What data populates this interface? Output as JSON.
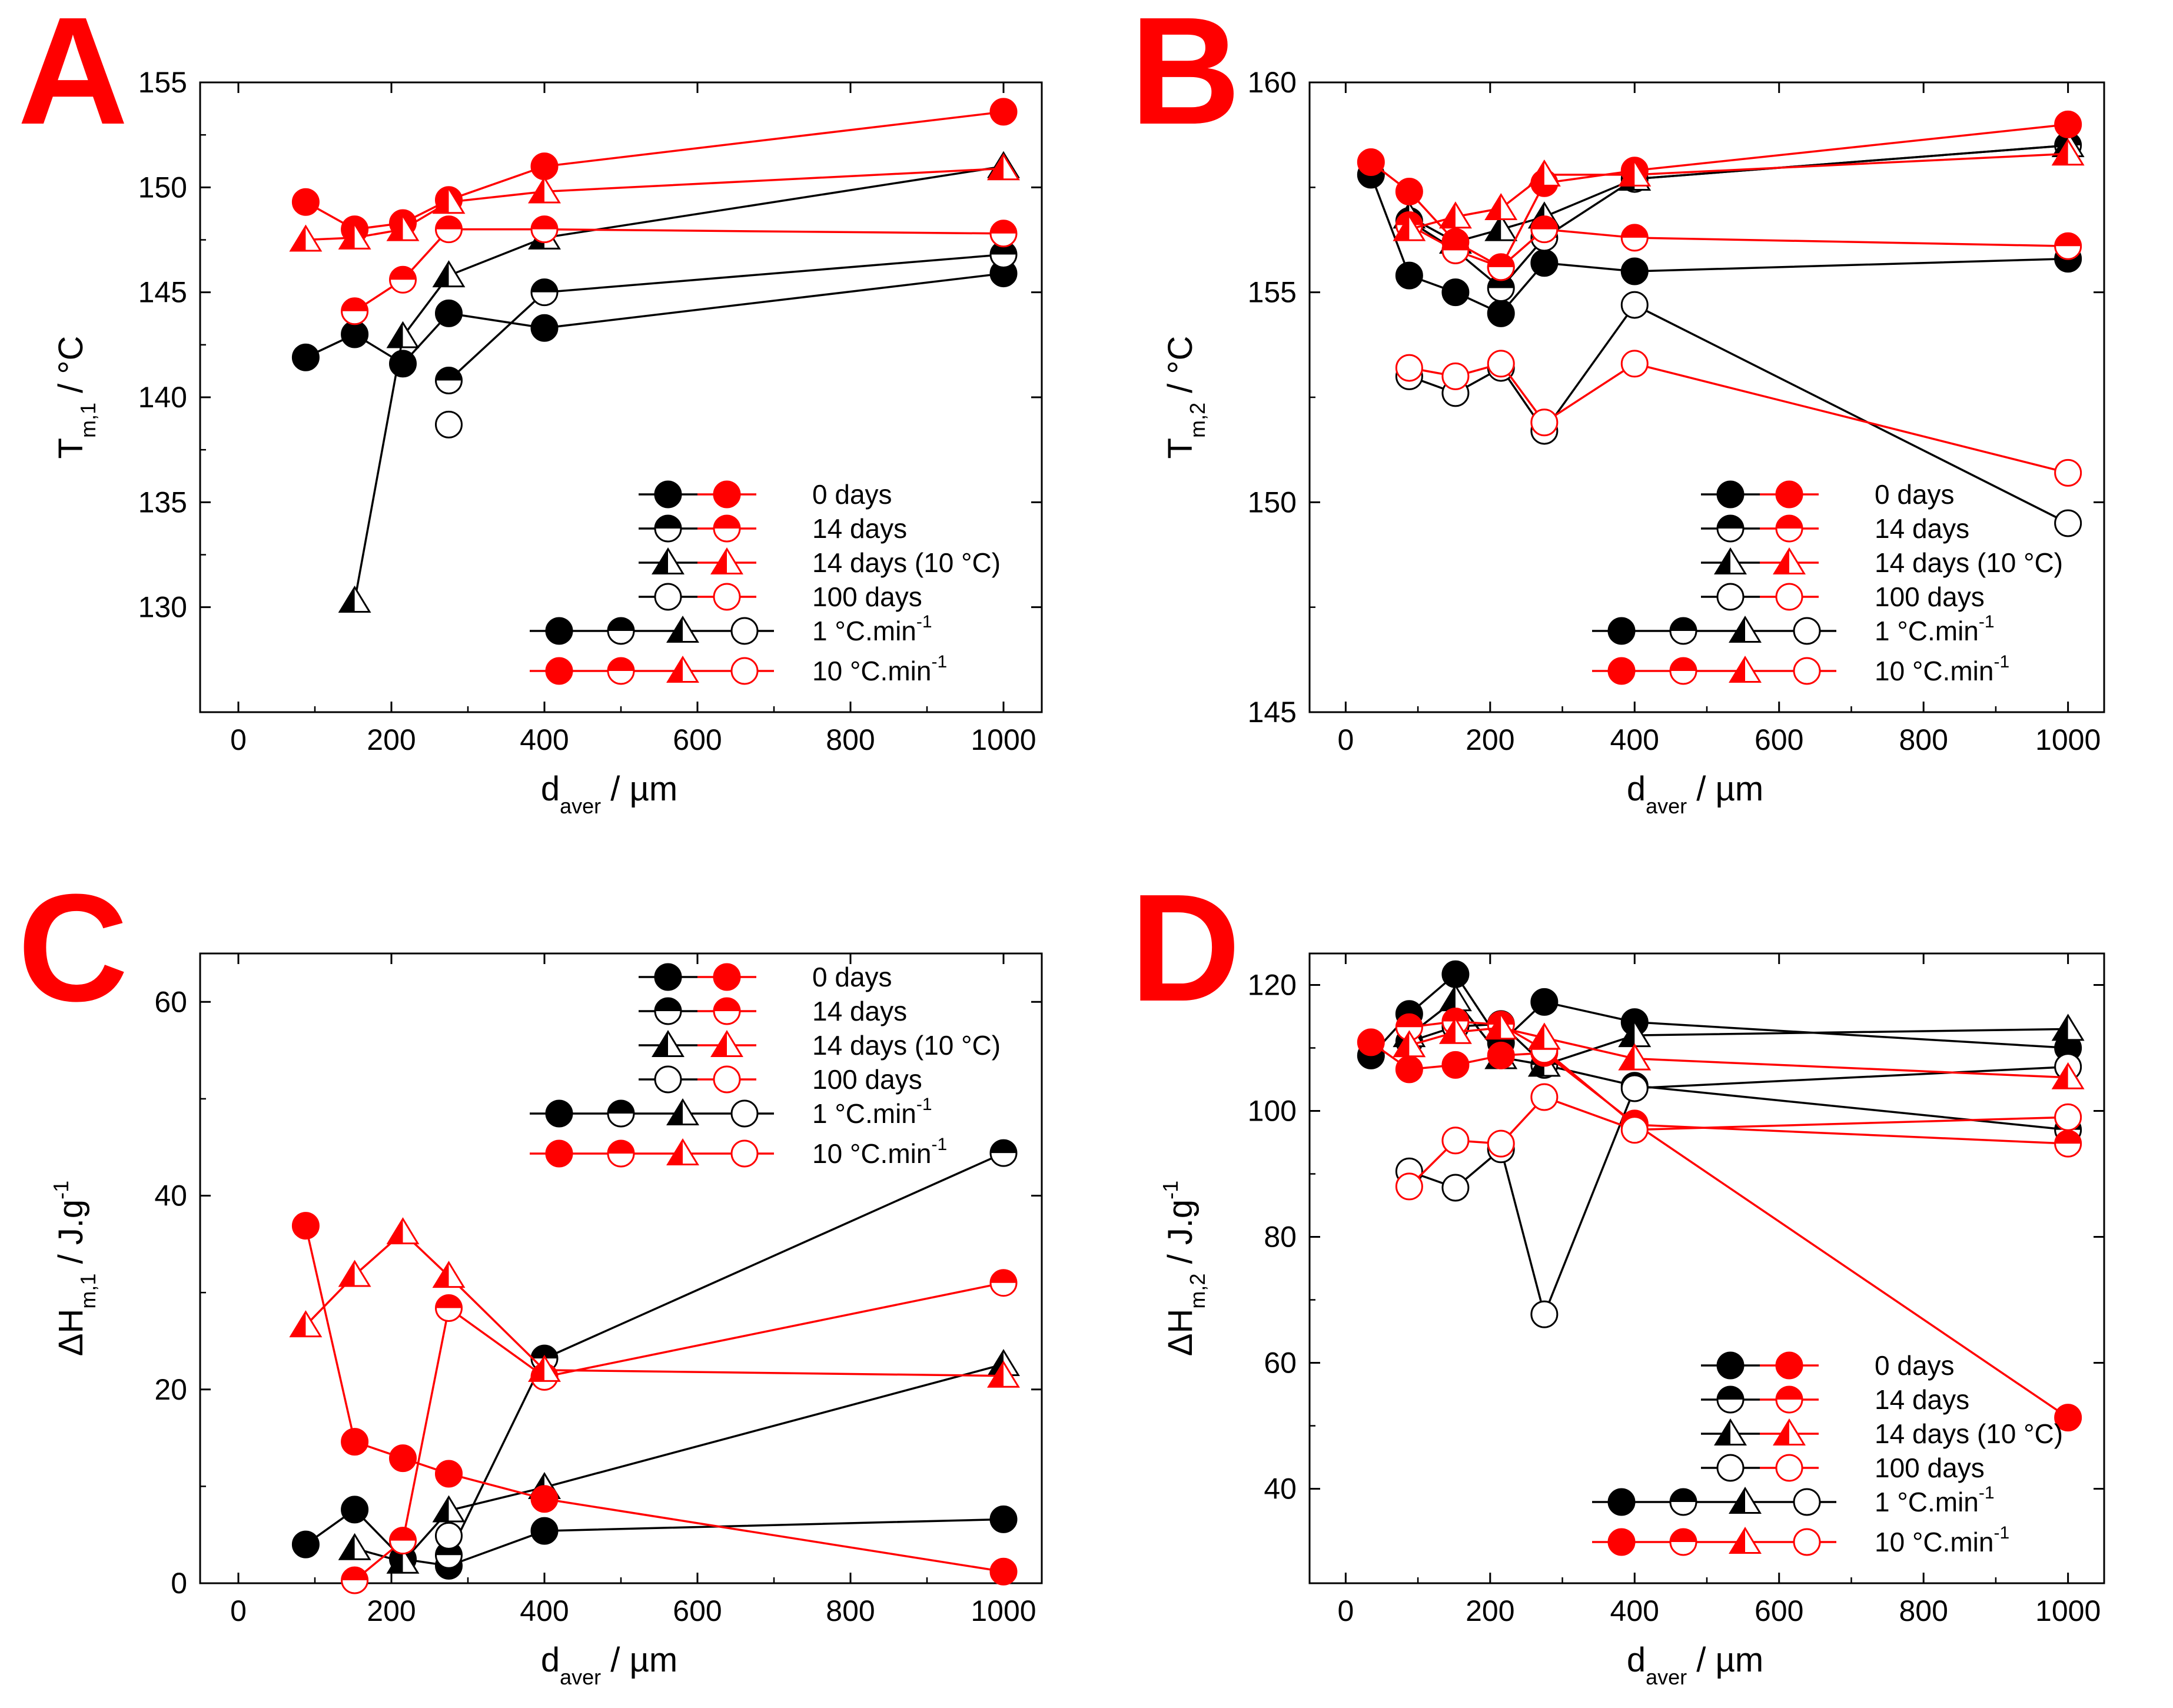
{
  "colors": {
    "black": "#000000",
    "red": "#ff0000"
  },
  "legend": {
    "series_labels": [
      "0 days",
      "14 days",
      "14 days (10 °C)",
      "100 days"
    ],
    "rate_labels": [
      {
        "base": "1 °C.min",
        "sup": "-1"
      },
      {
        "base": "10 °C.min",
        "sup": "-1"
      }
    ]
  },
  "chart_data": [
    {
      "panel": "A",
      "type": "line",
      "xlabel": "d",
      "xlabel_sub": "aver",
      "xunit": "µm",
      "ylabel": "T",
      "ylabel_sub": "m,1",
      "yunit": "°C",
      "xlim": [
        -50,
        1050
      ],
      "ylim": [
        125,
        155
      ],
      "xticks": [
        0,
        200,
        400,
        600,
        800,
        1000
      ],
      "yticks": [
        130,
        135,
        140,
        145,
        150,
        155
      ],
      "legend_position": "bottom-right",
      "series": [
        {
          "name": "0 days",
          "rate": "1 °C.min-1",
          "color": "black",
          "marker": "full",
          "points": [
            [
              88,
              141.9
            ],
            [
              152,
              143.0
            ],
            [
              215,
              141.6
            ],
            [
              275,
              144.0
            ],
            [
              400,
              143.3
            ],
            [
              1000,
              145.9
            ]
          ]
        },
        {
          "name": "14 days",
          "rate": "1 °C.min-1",
          "color": "black",
          "marker": "half",
          "points": [
            [
              275,
              140.8
            ],
            [
              400,
              145.0
            ],
            [
              1000,
              146.8
            ]
          ]
        },
        {
          "name": "14 days (10 °C)",
          "rate": "1 °C.min-1",
          "color": "black",
          "marker": "tri",
          "points": [
            [
              152,
              130.3
            ],
            [
              215,
              142.9
            ],
            [
              275,
              145.8
            ],
            [
              400,
              147.6
            ],
            [
              1000,
              151.0
            ]
          ]
        },
        {
          "name": "100 days",
          "rate": "1 °C.min-1",
          "color": "black",
          "marker": "open",
          "points": [
            [
              275,
              138.7
            ]
          ]
        },
        {
          "name": "0 days",
          "rate": "10 °C.min-1",
          "color": "red",
          "marker": "full",
          "points": [
            [
              88,
              149.3
            ],
            [
              152,
              148.0
            ],
            [
              215,
              148.3
            ],
            [
              275,
              149.4
            ],
            [
              400,
              151.0
            ],
            [
              1000,
              153.6
            ]
          ]
        },
        {
          "name": "14 days",
          "rate": "10 °C.min-1",
          "color": "red",
          "marker": "half",
          "points": [
            [
              152,
              144.1
            ],
            [
              215,
              145.6
            ],
            [
              275,
              148.0
            ],
            [
              400,
              148.0
            ],
            [
              1000,
              147.8
            ]
          ]
        },
        {
          "name": "14 days (10 °C)",
          "rate": "10 °C.min-1",
          "color": "red",
          "marker": "tri",
          "points": [
            [
              88,
              147.5
            ],
            [
              152,
              147.6
            ],
            [
              215,
              148.0
            ],
            [
              275,
              149.3
            ],
            [
              400,
              149.8
            ],
            [
              1000,
              150.9
            ]
          ]
        },
        {
          "name": "100 days",
          "rate": "10 °C.min-1",
          "color": "red",
          "marker": "open",
          "points": []
        }
      ]
    },
    {
      "panel": "B",
      "type": "line",
      "xlabel": "d",
      "xlabel_sub": "aver",
      "xunit": "µm",
      "ylabel": "T",
      "ylabel_sub": "m,2",
      "yunit": "°C",
      "xlim": [
        -50,
        1050
      ],
      "ylim": [
        145,
        160
      ],
      "xticks": [
        0,
        200,
        400,
        600,
        800,
        1000
      ],
      "yticks": [
        145,
        150,
        155,
        160
      ],
      "legend_position": "bottom-right",
      "series": [
        {
          "name": "0 days",
          "rate": "1 °C.min-1",
          "color": "black",
          "marker": "full",
          "points": [
            [
              35,
              157.8
            ],
            [
              88,
              155.4
            ],
            [
              152,
              155.0
            ],
            [
              215,
              154.5
            ],
            [
              275,
              155.7
            ],
            [
              400,
              155.5
            ],
            [
              1000,
              155.8
            ]
          ]
        },
        {
          "name": "14 days",
          "rate": "1 °C.min-1",
          "color": "black",
          "marker": "half",
          "points": [
            [
              88,
              156.7
            ],
            [
              152,
              156.0
            ],
            [
              215,
              155.1
            ],
            [
              275,
              156.3
            ],
            [
              400,
              157.7
            ],
            [
              1000,
              158.5
            ]
          ]
        },
        {
          "name": "14 days (10 °C)",
          "rate": "1 °C.min-1",
          "color": "black",
          "marker": "tri",
          "points": [
            [
              88,
              156.8
            ],
            [
              152,
              156.2
            ],
            [
              215,
              156.5
            ],
            [
              275,
              156.8
            ],
            [
              400,
              157.7
            ],
            [
              1000,
              158.5
            ]
          ]
        },
        {
          "name": "100 days",
          "rate": "1 °C.min-1",
          "color": "black",
          "marker": "open",
          "points": [
            [
              88,
              153.0
            ],
            [
              152,
              152.6
            ],
            [
              215,
              153.2
            ],
            [
              275,
              151.7
            ],
            [
              400,
              154.7
            ],
            [
              1000,
              149.5
            ]
          ]
        },
        {
          "name": "0 days",
          "rate": "10 °C.min-1",
          "color": "red",
          "marker": "full",
          "points": [
            [
              35,
              158.1
            ],
            [
              88,
              157.4
            ],
            [
              152,
              156.2
            ],
            [
              215,
              155.6
            ],
            [
              275,
              157.6
            ],
            [
              400,
              157.9
            ],
            [
              1000,
              159.0
            ]
          ]
        },
        {
          "name": "14 days",
          "rate": "10 °C.min-1",
          "color": "red",
          "marker": "half",
          "points": [
            [
              88,
              156.6
            ],
            [
              152,
              156.0
            ],
            [
              215,
              155.6
            ],
            [
              275,
              156.5
            ],
            [
              400,
              156.3
            ],
            [
              1000,
              156.1
            ]
          ]
        },
        {
          "name": "14 days (10 °C)",
          "rate": "10 °C.min-1",
          "color": "red",
          "marker": "tri",
          "points": [
            [
              88,
              156.5
            ],
            [
              152,
              156.8
            ],
            [
              215,
              157.0
            ],
            [
              275,
              157.8
            ],
            [
              400,
              157.8
            ],
            [
              1000,
              158.3
            ]
          ]
        },
        {
          "name": "100 days",
          "rate": "10 °C.min-1",
          "color": "red",
          "marker": "open",
          "points": [
            [
              88,
              153.2
            ],
            [
              152,
              153.0
            ],
            [
              215,
              153.3
            ],
            [
              275,
              151.9
            ],
            [
              400,
              153.3
            ],
            [
              1000,
              150.7
            ]
          ]
        }
      ]
    },
    {
      "panel": "C",
      "type": "line",
      "xlabel": "d",
      "xlabel_sub": "aver",
      "xunit": "µm",
      "ylabel": "ΔH",
      "ylabel_sub": "m,1",
      "yunit": "J.g",
      "yunit_sup": "-1",
      "xlim": [
        -50,
        1050
      ],
      "ylim": [
        0,
        65
      ],
      "xticks": [
        0,
        200,
        400,
        600,
        800,
        1000
      ],
      "yticks": [
        0,
        20,
        40,
        60
      ],
      "legend_position": "top-right",
      "series": [
        {
          "name": "0 days",
          "rate": "1 °C.min-1",
          "color": "black",
          "marker": "full",
          "points": [
            [
              88,
              4.0
            ],
            [
              152,
              7.6
            ],
            [
              215,
              2.5
            ],
            [
              275,
              1.8
            ],
            [
              400,
              5.4
            ],
            [
              1000,
              6.6
            ]
          ]
        },
        {
          "name": "14 days",
          "rate": "1 °C.min-1",
          "color": "black",
          "marker": "half",
          "points": [
            [
              275,
              2.9
            ],
            [
              400,
              23.2
            ],
            [
              1000,
              44.4
            ]
          ]
        },
        {
          "name": "14 days (10 °C)",
          "rate": "1 °C.min-1",
          "color": "black",
          "marker": "tri",
          "points": [
            [
              152,
              3.6
            ],
            [
              215,
              2.2
            ],
            [
              275,
              7.5
            ],
            [
              400,
              9.9
            ],
            [
              1000,
              22.6
            ]
          ]
        },
        {
          "name": "100 days",
          "rate": "1 °C.min-1",
          "color": "black",
          "marker": "open",
          "points": [
            [
              275,
              4.9
            ]
          ]
        },
        {
          "name": "0 days",
          "rate": "10 °C.min-1",
          "color": "red",
          "marker": "full",
          "points": [
            [
              88,
              36.9
            ],
            [
              152,
              14.6
            ],
            [
              215,
              12.9
            ],
            [
              275,
              11.3
            ],
            [
              400,
              8.7
            ],
            [
              1000,
              1.2
            ]
          ]
        },
        {
          "name": "14 days",
          "rate": "10 °C.min-1",
          "color": "red",
          "marker": "half",
          "points": [
            [
              152,
              0.3
            ],
            [
              215,
              4.4
            ],
            [
              275,
              28.4
            ],
            [
              400,
              21.3
            ],
            [
              1000,
              31.0
            ]
          ]
        },
        {
          "name": "14 days (10 °C)",
          "rate": "10 °C.min-1",
          "color": "red",
          "marker": "tri",
          "points": [
            [
              88,
              26.6
            ],
            [
              152,
              31.8
            ],
            [
              215,
              36.2
            ],
            [
              275,
              31.7
            ],
            [
              400,
              22.0
            ],
            [
              1000,
              21.4
            ]
          ]
        },
        {
          "name": "100 days",
          "rate": "10 °C.min-1",
          "color": "red",
          "marker": "open",
          "points": []
        }
      ]
    },
    {
      "panel": "D",
      "type": "line",
      "xlabel": "d",
      "xlabel_sub": "aver",
      "xunit": "µm",
      "ylabel": "ΔH",
      "ylabel_sub": "m,2",
      "yunit": "J.g",
      "yunit_sup": "-1",
      "xlim": [
        -50,
        1050
      ],
      "ylim": [
        25,
        125
      ],
      "xticks": [
        0,
        200,
        400,
        600,
        800,
        1000
      ],
      "yticks": [
        40,
        60,
        80,
        100,
        120
      ],
      "legend_position": "bottom-right",
      "series": [
        {
          "name": "0 days",
          "rate": "1 °C.min-1",
          "color": "black",
          "marker": "full",
          "points": [
            [
              35,
              108.8
            ],
            [
              88,
              115.4
            ],
            [
              152,
              121.7
            ],
            [
              215,
              110.8
            ],
            [
              275,
              117.3
            ],
            [
              400,
              114.1
            ],
            [
              1000,
              110.0
            ]
          ]
        },
        {
          "name": "14 days",
          "rate": "1 °C.min-1",
          "color": "black",
          "marker": "half",
          "points": [
            [
              88,
              111.0
            ],
            [
              152,
              113.4
            ],
            [
              215,
              113.8
            ],
            [
              275,
              107.3
            ],
            [
              400,
              104.0
            ],
            [
              1000,
              97.0
            ]
          ]
        },
        {
          "name": "14 days (10 °C)",
          "rate": "1 °C.min-1",
          "color": "black",
          "marker": "tri",
          "points": [
            [
              88,
              112.0
            ],
            [
              152,
              117.7
            ],
            [
              215,
              108.5
            ],
            [
              275,
              107.3
            ],
            [
              400,
              112.0
            ],
            [
              1000,
              113.0
            ]
          ]
        },
        {
          "name": "100 days",
          "rate": "1 °C.min-1",
          "color": "black",
          "marker": "open",
          "points": [
            [
              88,
              90.4
            ],
            [
              152,
              87.8
            ],
            [
              215,
              93.9
            ],
            [
              275,
              67.7
            ],
            [
              400,
              103.6
            ],
            [
              1000,
              107.0
            ]
          ]
        },
        {
          "name": "0 days",
          "rate": "10 °C.min-1",
          "color": "red",
          "marker": "full",
          "points": [
            [
              35,
              110.9
            ],
            [
              88,
              106.6
            ],
            [
              152,
              107.3
            ],
            [
              215,
              108.8
            ],
            [
              275,
              109.2
            ],
            [
              400,
              98.0
            ],
            [
              1000,
              51.3
            ]
          ]
        },
        {
          "name": "14 days",
          "rate": "10 °C.min-1",
          "color": "red",
          "marker": "half",
          "points": [
            [
              88,
              113.3
            ],
            [
              152,
              114.2
            ],
            [
              215,
              113.7
            ],
            [
              275,
              109.7
            ],
            [
              400,
              97.8
            ],
            [
              1000,
              94.8
            ]
          ]
        },
        {
          "name": "14 days (10 °C)",
          "rate": "10 °C.min-1",
          "color": "red",
          "marker": "tri",
          "points": [
            [
              88,
              110.4
            ],
            [
              152,
              112.5
            ],
            [
              215,
              113.2
            ],
            [
              275,
              111.6
            ],
            [
              400,
              108.3
            ],
            [
              1000,
              105.3
            ]
          ]
        },
        {
          "name": "100 days",
          "rate": "10 °C.min-1",
          "color": "red",
          "marker": "open",
          "points": [
            [
              88,
              88.0
            ],
            [
              152,
              95.3
            ],
            [
              215,
              94.8
            ],
            [
              275,
              102.2
            ],
            [
              400,
              97.0
            ],
            [
              1000,
              99.0
            ]
          ]
        }
      ]
    }
  ]
}
